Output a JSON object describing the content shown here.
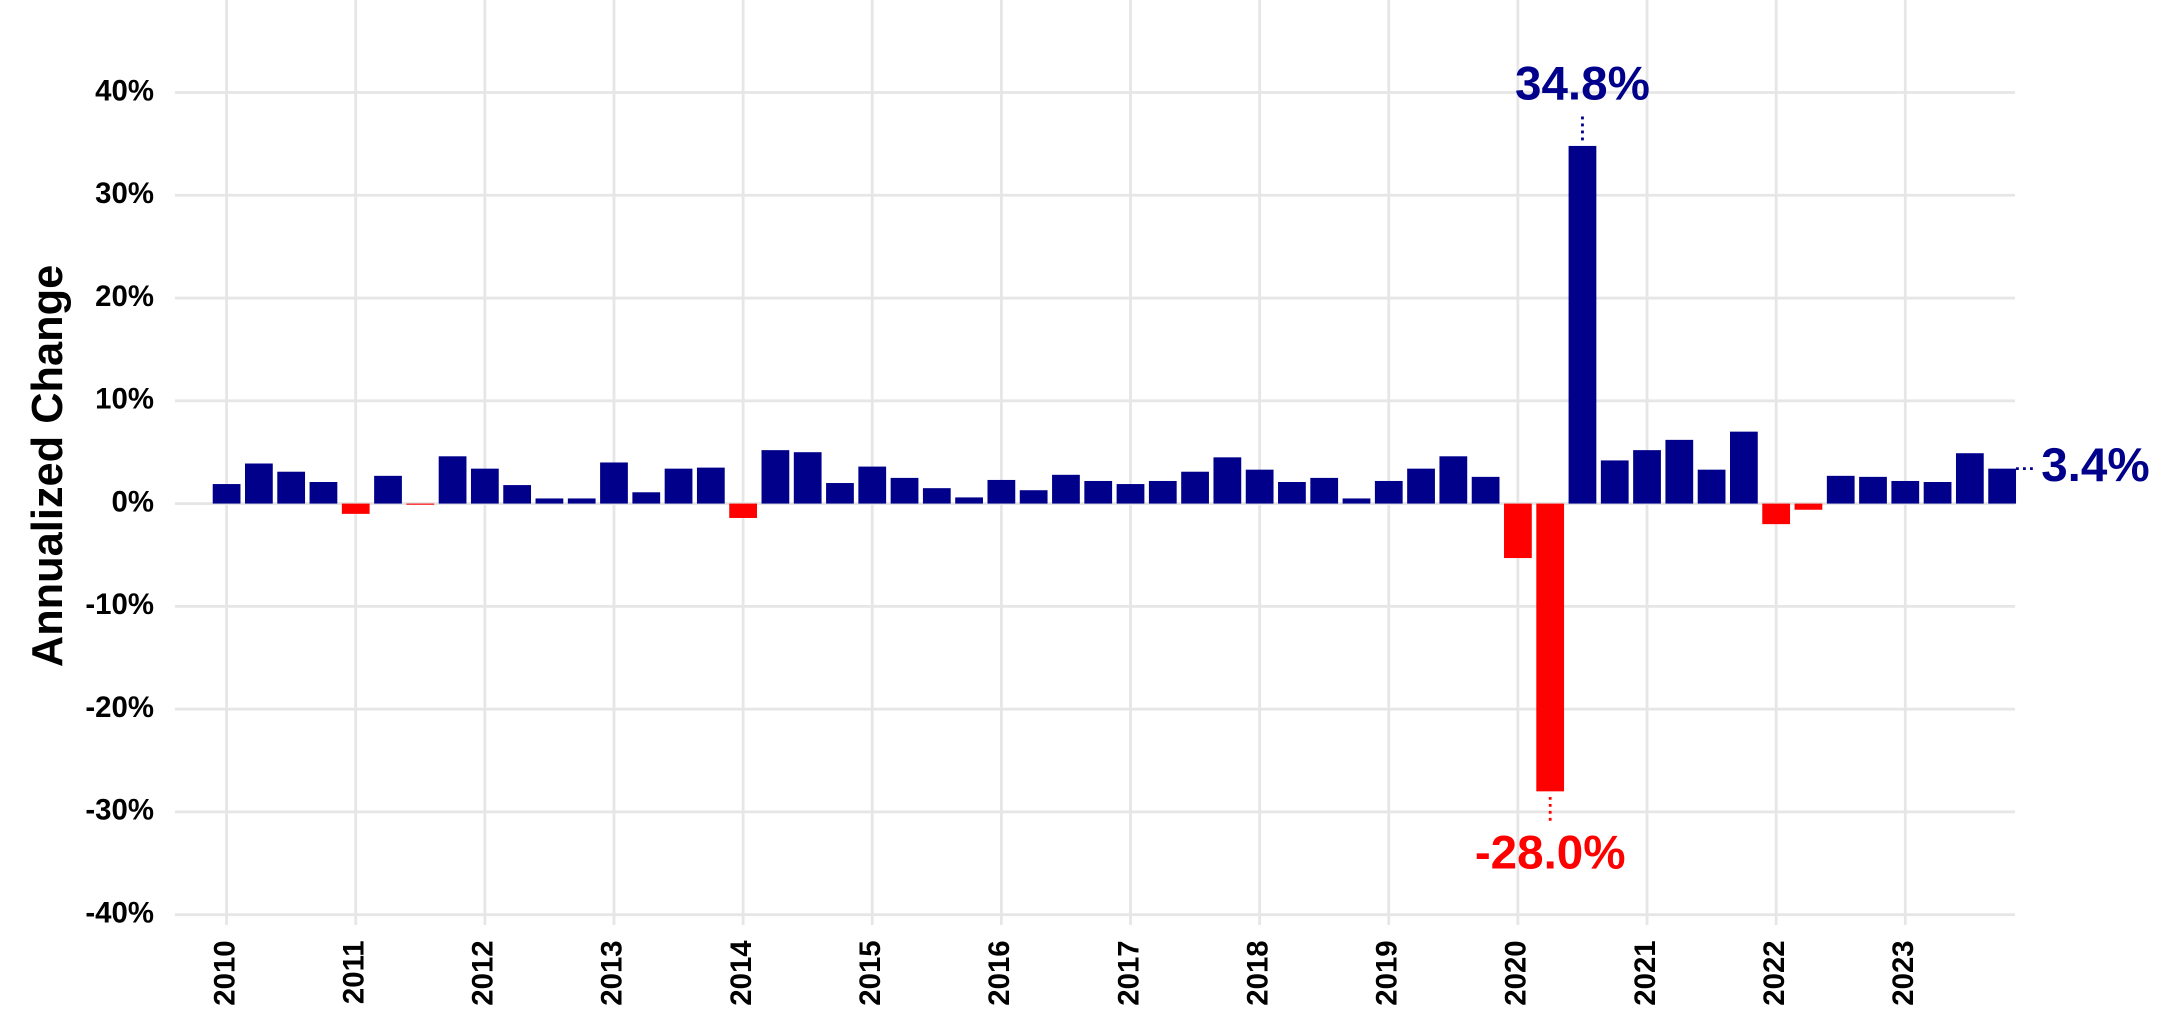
{
  "chart_data": {
    "type": "bar",
    "y_label": "Annualized Change",
    "x": [
      2010,
      2010.25,
      2010.5,
      2010.75,
      2011,
      2011.25,
      2011.5,
      2011.75,
      2012,
      2012.25,
      2012.5,
      2012.75,
      2013,
      2013.25,
      2013.5,
      2013.75,
      2014,
      2014.25,
      2014.5,
      2014.75,
      2015,
      2015.25,
      2015.5,
      2015.75,
      2016,
      2016.25,
      2016.5,
      2016.75,
      2017,
      2017.25,
      2017.5,
      2017.75,
      2018,
      2018.25,
      2018.5,
      2018.75,
      2019,
      2019.25,
      2019.5,
      2019.75,
      2020,
      2020.25,
      2020.5,
      2020.75,
      2021,
      2021.25,
      2021.5,
      2021.75,
      2022,
      2022.25,
      2022.5,
      2022.75,
      2023,
      2023.25,
      2023.5,
      2023.75
    ],
    "values": [
      1.9,
      3.9,
      3.1,
      2.1,
      -1.0,
      2.7,
      -0.1,
      4.6,
      3.4,
      1.8,
      0.5,
      0.5,
      4.0,
      1.1,
      3.4,
      3.5,
      -1.4,
      5.2,
      5.0,
      2.0,
      3.6,
      2.5,
      1.5,
      0.6,
      2.3,
      1.3,
      2.8,
      2.2,
      1.9,
      2.2,
      3.1,
      4.5,
      3.3,
      2.1,
      2.5,
      0.5,
      2.2,
      3.4,
      4.6,
      2.6,
      -5.3,
      -28.0,
      34.8,
      4.2,
      5.2,
      6.2,
      3.3,
      7.0,
      -2.0,
      -0.6,
      2.7,
      2.6,
      2.2,
      2.1,
      4.9,
      3.4
    ],
    "value_labels": [
      null,
      null,
      null,
      null,
      null,
      null,
      null,
      null,
      null,
      null,
      null,
      null,
      null,
      null,
      null,
      null,
      null,
      null,
      null,
      null,
      null,
      null,
      null,
      null,
      null,
      null,
      null,
      null,
      null,
      null,
      null,
      null,
      null,
      null,
      null,
      null,
      null,
      null,
      null,
      null,
      null,
      "-28.0%",
      "34.8%",
      null,
      null,
      null,
      null,
      null,
      null,
      null,
      null,
      null,
      null,
      null,
      null,
      "3.4%"
    ],
    "color": "#00008b",
    "negative_color": "#ff0000",
    "xlim": [
      2009.6,
      2023.85
    ],
    "xticks": [
      2010,
      2011,
      2012,
      2013,
      2014,
      2015,
      2016,
      2017,
      2018,
      2019,
      2020,
      2021,
      2022,
      2023
    ],
    "ylim": [
      -41,
      49
    ],
    "yticks": [
      {
        "value": -40,
        "label": "-40%"
      },
      {
        "value": -30,
        "label": "-30%"
      },
      {
        "value": -20,
        "label": "-20%"
      },
      {
        "value": -10,
        "label": "-10%"
      },
      {
        "value": 0,
        "label": "0%"
      },
      {
        "value": 10,
        "label": "10%"
      },
      {
        "value": 20,
        "label": "20%"
      },
      {
        "value": 30,
        "label": "30%"
      },
      {
        "value": 40,
        "label": "40%"
      }
    ],
    "grid": true
  }
}
